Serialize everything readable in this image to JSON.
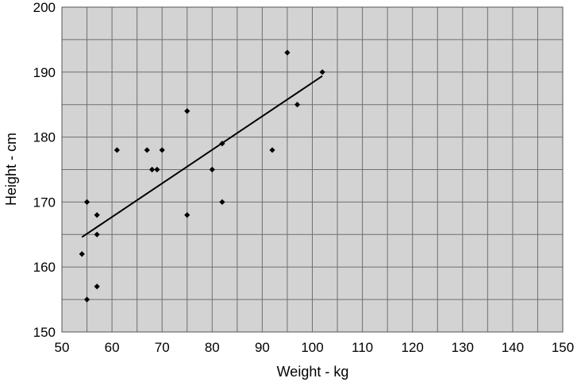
{
  "chart_data": {
    "type": "scatter",
    "title": "",
    "xlabel": "Weight - kg",
    "ylabel": "Height - cm",
    "xlim": [
      50,
      150
    ],
    "ylim": [
      150,
      200
    ],
    "x_major_ticks": [
      50,
      60,
      70,
      80,
      90,
      100,
      110,
      120,
      130,
      140,
      150
    ],
    "x_tick_labels": [
      "50",
      "60",
      "70",
      "80",
      "90",
      "100",
      "110",
      "120",
      "130",
      "140",
      "150"
    ],
    "x_minor_gridlines": [
      55,
      65,
      75,
      85,
      95,
      105,
      115,
      125,
      135,
      145
    ],
    "y_major_ticks": [
      150,
      160,
      170,
      180,
      190,
      200
    ],
    "y_tick_labels": [
      "150",
      "160",
      "170",
      "180",
      "190",
      "200"
    ],
    "y_minor_gridlines": [
      155,
      165,
      175,
      185,
      195
    ],
    "grid": true,
    "plot_background": "#d3d3d3",
    "grid_color": "#6f6f6f",
    "marker_color": "#000000",
    "points": [
      {
        "x": 54,
        "y": 162
      },
      {
        "x": 55,
        "y": 155
      },
      {
        "x": 55,
        "y": 170
      },
      {
        "x": 57,
        "y": 157
      },
      {
        "x": 57,
        "y": 165
      },
      {
        "x": 57,
        "y": 168
      },
      {
        "x": 61,
        "y": 178
      },
      {
        "x": 67,
        "y": 178
      },
      {
        "x": 68,
        "y": 175
      },
      {
        "x": 69,
        "y": 175
      },
      {
        "x": 70,
        "y": 178
      },
      {
        "x": 75,
        "y": 184
      },
      {
        "x": 75,
        "y": 168
      },
      {
        "x": 80,
        "y": 175
      },
      {
        "x": 82,
        "y": 179
      },
      {
        "x": 82,
        "y": 170
      },
      {
        "x": 92,
        "y": 178
      },
      {
        "x": 95,
        "y": 193
      },
      {
        "x": 97,
        "y": 185
      },
      {
        "x": 102,
        "y": 190
      }
    ],
    "trendline": {
      "x": [
        54,
        102
      ],
      "y": [
        164.6,
        189.4
      ]
    }
  }
}
